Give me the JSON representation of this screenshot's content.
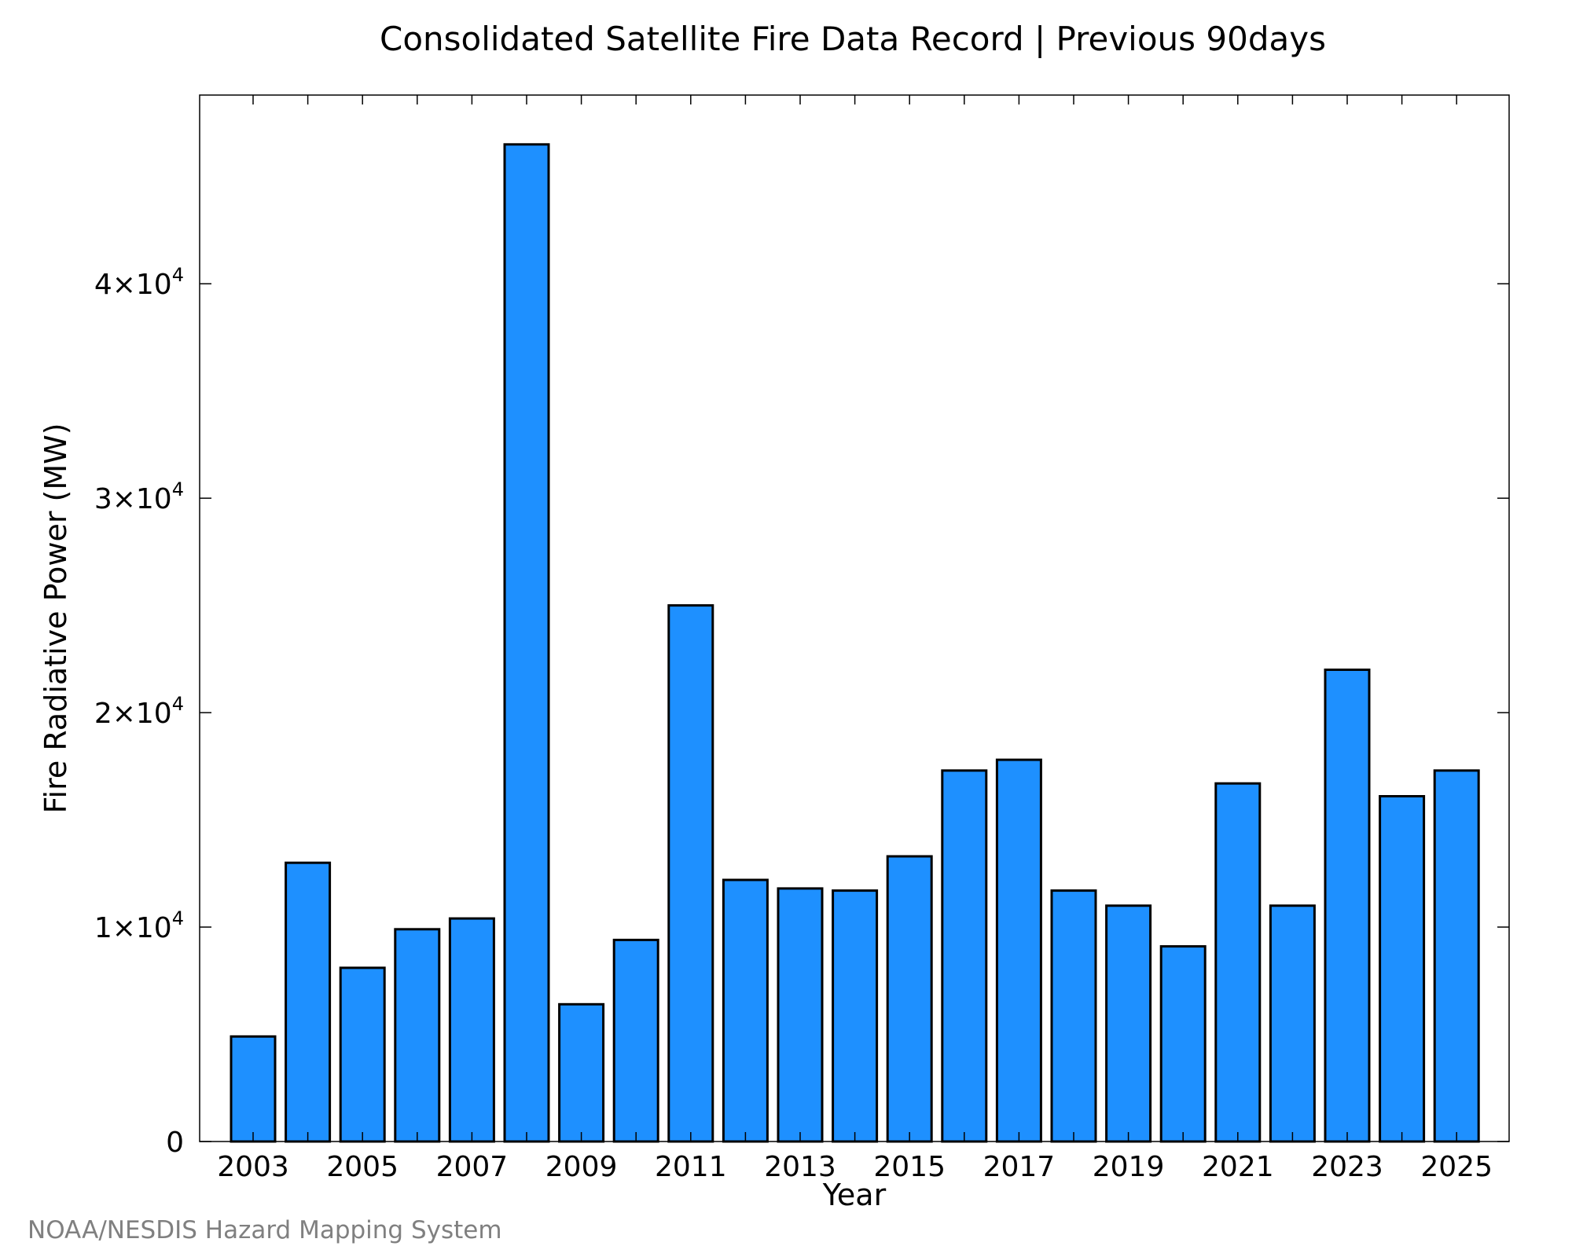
{
  "chart_data": {
    "type": "bar",
    "title": "Consolidated Satellite Fire Data Record | Previous 90days",
    "xlabel": "Year",
    "ylabel": "Fire Radiative Power (MW)",
    "categories": [
      "2003",
      "2004",
      "2005",
      "2006",
      "2007",
      "2008",
      "2009",
      "2010",
      "2011",
      "2012",
      "2013",
      "2014",
      "2015",
      "2016",
      "2017",
      "2018",
      "2019",
      "2020",
      "2021",
      "2022",
      "2023",
      "2024",
      "2025"
    ],
    "values": [
      4900,
      13000,
      8100,
      9900,
      10400,
      46500,
      6400,
      9400,
      25000,
      12200,
      11800,
      11700,
      13300,
      17300,
      17800,
      11700,
      11000,
      9100,
      16700,
      11000,
      22000,
      16100,
      17300
    ],
    "x_tick_labels": [
      "2003",
      "2005",
      "2007",
      "2009",
      "2011",
      "2013",
      "2015",
      "2017",
      "2019",
      "2021",
      "2023",
      "2025"
    ],
    "y_ticks": [
      {
        "value": 0,
        "mantissa": "0",
        "exponent": ""
      },
      {
        "value": 10000,
        "mantissa": "1×10",
        "exponent": "4"
      },
      {
        "value": 20000,
        "mantissa": "2×10",
        "exponent": "4"
      },
      {
        "value": 30000,
        "mantissa": "3×10",
        "exponent": "4"
      },
      {
        "value": 40000,
        "mantissa": "4×10",
        "exponent": "4"
      }
    ],
    "ylim": [
      0,
      48800
    ],
    "grid": false,
    "bar_color": "#1E90FF"
  },
  "footer": "NOAA/NESDIS Hazard Mapping System"
}
